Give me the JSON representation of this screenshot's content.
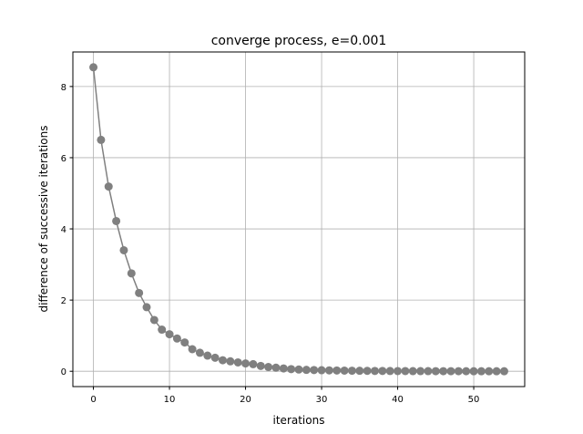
{
  "chart_data": {
    "type": "line",
    "title": "converge process, e=0.001",
    "xlabel": "iterations",
    "ylabel": "difference of successive iterations",
    "xlim": [
      -2.7,
      56.7
    ],
    "ylim": [
      -0.43,
      8.97
    ],
    "xticks": [
      0,
      10,
      20,
      30,
      40,
      50
    ],
    "yticks": [
      0,
      2,
      4,
      6,
      8
    ],
    "grid": true,
    "color": "#808080",
    "marker": "circle",
    "x": [
      0,
      1,
      2,
      3,
      4,
      5,
      6,
      7,
      8,
      9,
      10,
      11,
      12,
      13,
      14,
      15,
      16,
      17,
      18,
      19,
      20,
      21,
      22,
      23,
      24,
      25,
      26,
      27,
      28,
      29,
      30,
      31,
      32,
      33,
      34,
      35,
      36,
      37,
      38,
      39,
      40,
      41,
      42,
      43,
      44,
      45,
      46,
      47,
      48,
      49,
      50,
      51,
      52,
      53,
      54
    ],
    "y": [
      8.54,
      6.5,
      5.19,
      4.22,
      3.4,
      2.75,
      2.2,
      1.8,
      1.44,
      1.17,
      1.04,
      0.92,
      0.81,
      0.62,
      0.52,
      0.44,
      0.38,
      0.31,
      0.28,
      0.25,
      0.22,
      0.2,
      0.15,
      0.12,
      0.1,
      0.08,
      0.06,
      0.05,
      0.04,
      0.035,
      0.03,
      0.026,
      0.022,
      0.019,
      0.016,
      0.014,
      0.012,
      0.01,
      0.009,
      0.008,
      0.007,
      0.006,
      0.005,
      0.0045,
      0.004,
      0.0035,
      0.003,
      0.0027,
      0.0024,
      0.0021,
      0.0018,
      0.0016,
      0.0014,
      0.0012,
      0.001
    ]
  }
}
